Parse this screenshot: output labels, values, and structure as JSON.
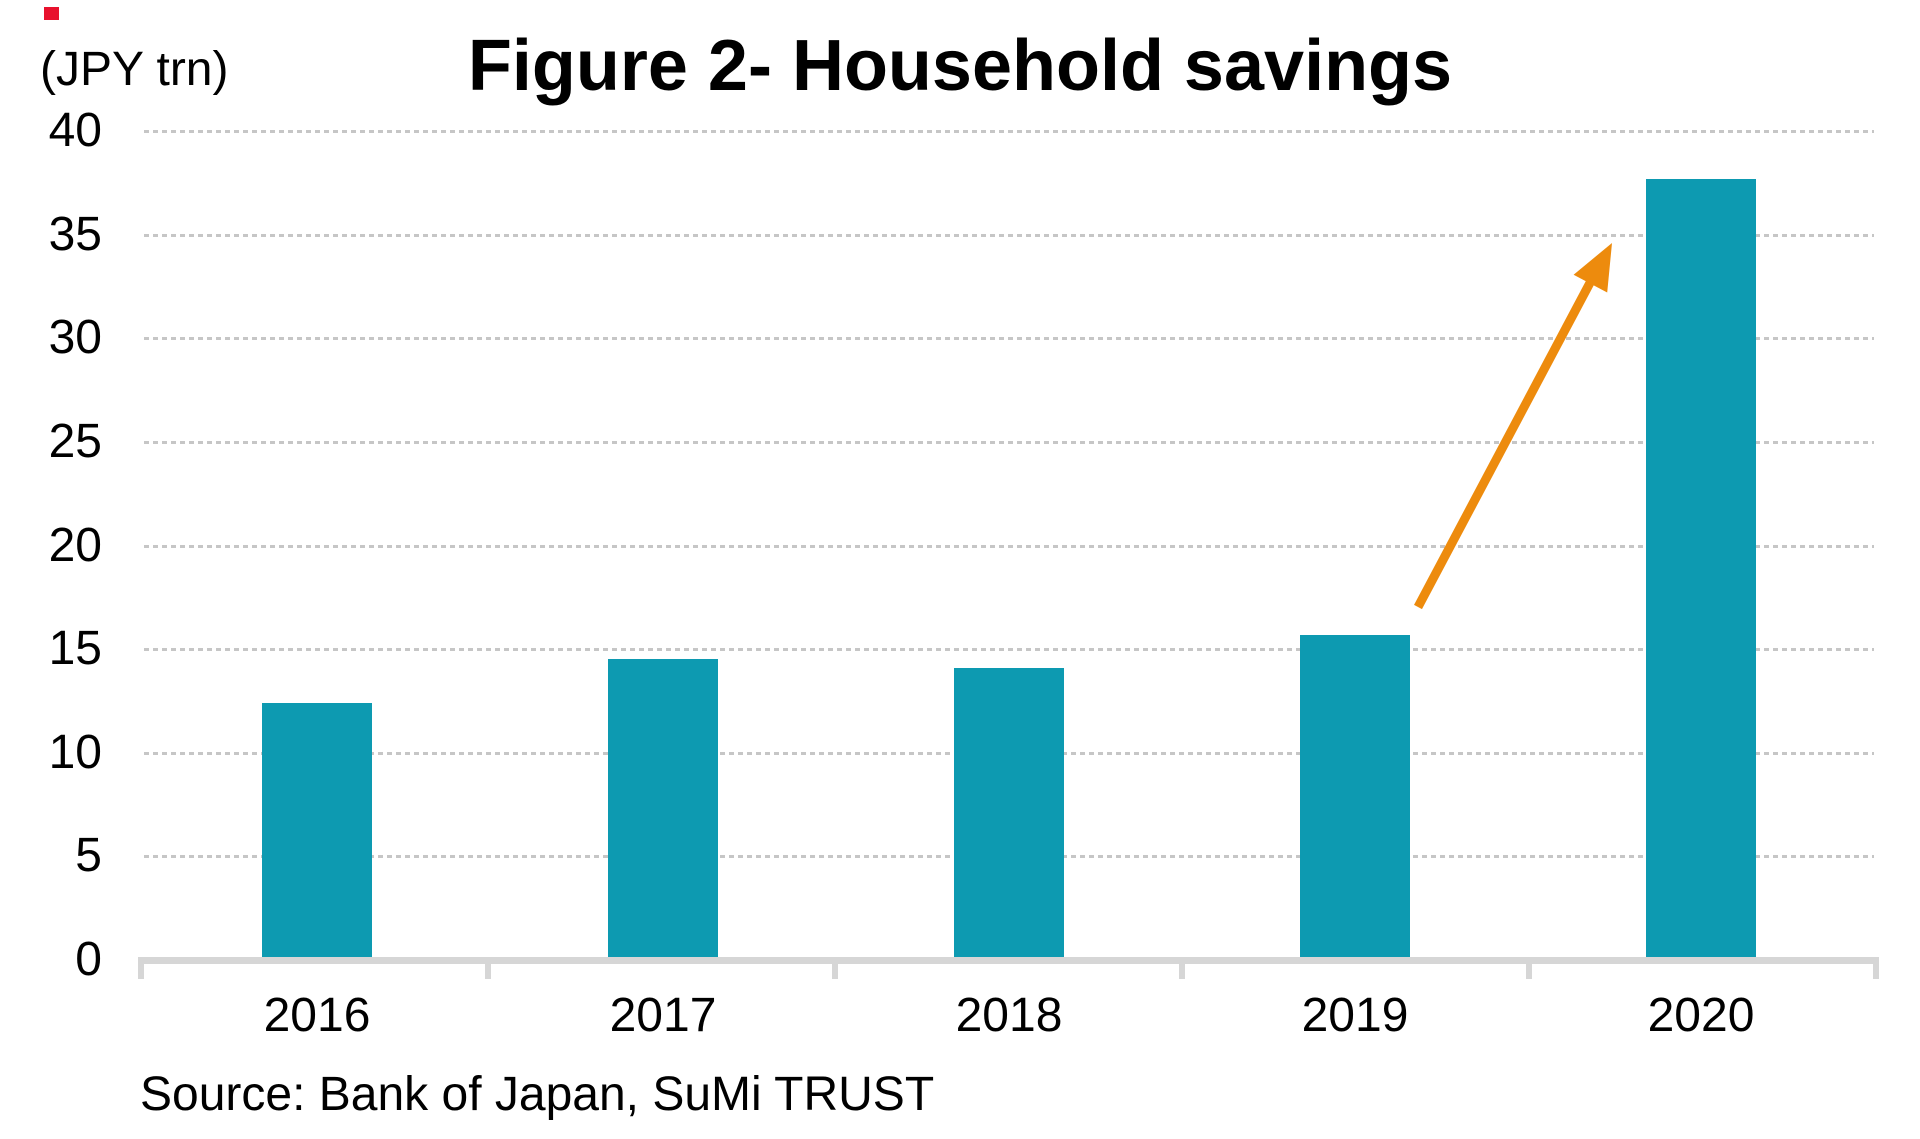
{
  "marker": {
    "color": "#e8112d"
  },
  "chart": {
    "unit_label": "(JPY trn)",
    "title": "Figure 2- Household savings",
    "source": "Source: Bank of Japan, SuMi TRUST"
  },
  "chart_data": {
    "type": "bar",
    "title": "Figure 2- Household savings",
    "unit_label": "(JPY trn)",
    "categories": [
      "2016",
      "2017",
      "2018",
      "2019",
      "2020"
    ],
    "values": [
      12.4,
      14.5,
      14.1,
      15.7,
      37.7
    ],
    "ylim": [
      0,
      40
    ],
    "ytick_interval": 5,
    "y_ticks": [
      0,
      5,
      10,
      15,
      20,
      25,
      30,
      35,
      40
    ],
    "grid": "horizontal-dotted",
    "legend": "none",
    "bar_color": "#0d9ab1",
    "gridline_color": "#c6c6c6",
    "axis_color": "#d6d6d6",
    "arrow_color": "#ed8b0d",
    "annotation": {
      "type": "arrow",
      "meaning": "sharp rise from 2019 to 2020"
    },
    "source": "Source: Bank of Japan, SuMi TRUST"
  }
}
